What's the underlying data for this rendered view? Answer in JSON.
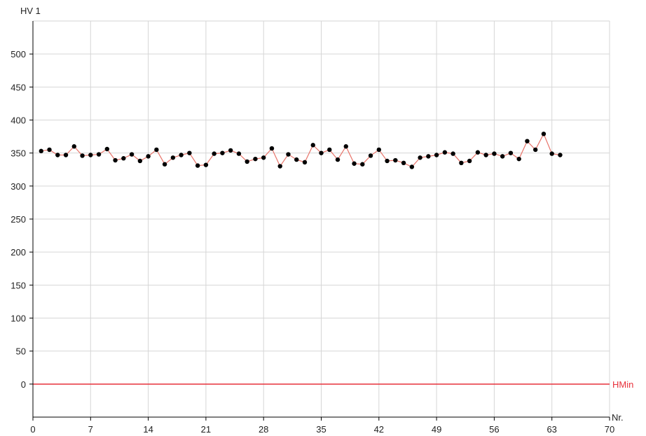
{
  "chart_data": {
    "type": "line",
    "xlabel": "Nr.",
    "ylabel": "HV 1",
    "xlim": [
      0,
      70
    ],
    "ylim": [
      -50,
      550
    ],
    "xticks": [
      0,
      7,
      14,
      21,
      28,
      35,
      42,
      49,
      56,
      63,
      70
    ],
    "yticks": [
      0,
      50,
      100,
      150,
      200,
      250,
      300,
      350,
      400,
      450,
      500
    ],
    "grid": true,
    "line_color": "#e8746a",
    "marker_color": "#000000",
    "series": [
      {
        "values": [
          {
            "x": 1,
            "y": 353
          },
          {
            "x": 2,
            "y": 355
          },
          {
            "x": 3,
            "y": 347
          },
          {
            "x": 4,
            "y": 347
          },
          {
            "x": 5,
            "y": 360
          },
          {
            "x": 6,
            "y": 346
          },
          {
            "x": 7,
            "y": 347
          },
          {
            "x": 8,
            "y": 348
          },
          {
            "x": 9,
            "y": 356
          },
          {
            "x": 10,
            "y": 339
          },
          {
            "x": 11,
            "y": 342
          },
          {
            "x": 12,
            "y": 348
          },
          {
            "x": 13,
            "y": 338
          },
          {
            "x": 14,
            "y": 345
          },
          {
            "x": 15,
            "y": 355
          },
          {
            "x": 16,
            "y": 333
          },
          {
            "x": 17,
            "y": 343
          },
          {
            "x": 18,
            "y": 347
          },
          {
            "x": 19,
            "y": 350
          },
          {
            "x": 20,
            "y": 331
          },
          {
            "x": 21,
            "y": 332
          },
          {
            "x": 22,
            "y": 349
          },
          {
            "x": 23,
            "y": 350
          },
          {
            "x": 24,
            "y": 354
          },
          {
            "x": 25,
            "y": 349
          },
          {
            "x": 26,
            "y": 337
          },
          {
            "x": 27,
            "y": 341
          },
          {
            "x": 28,
            "y": 343
          },
          {
            "x": 29,
            "y": 357
          },
          {
            "x": 30,
            "y": 330
          },
          {
            "x": 31,
            "y": 348
          },
          {
            "x": 32,
            "y": 340
          },
          {
            "x": 33,
            "y": 336
          },
          {
            "x": 34,
            "y": 362
          },
          {
            "x": 35,
            "y": 350
          },
          {
            "x": 36,
            "y": 355
          },
          {
            "x": 37,
            "y": 340
          },
          {
            "x": 38,
            "y": 360
          },
          {
            "x": 39,
            "y": 334
          },
          {
            "x": 40,
            "y": 333
          },
          {
            "x": 41,
            "y": 346
          },
          {
            "x": 42,
            "y": 355
          },
          {
            "x": 43,
            "y": 338
          },
          {
            "x": 44,
            "y": 339
          },
          {
            "x": 45,
            "y": 335
          },
          {
            "x": 46,
            "y": 329
          },
          {
            "x": 47,
            "y": 343
          },
          {
            "x": 48,
            "y": 345
          },
          {
            "x": 49,
            "y": 347
          },
          {
            "x": 50,
            "y": 351
          },
          {
            "x": 51,
            "y": 349
          },
          {
            "x": 52,
            "y": 335
          },
          {
            "x": 53,
            "y": 338
          },
          {
            "x": 54,
            "y": 351
          },
          {
            "x": 55,
            "y": 347
          },
          {
            "x": 56,
            "y": 349
          },
          {
            "x": 57,
            "y": 345
          },
          {
            "x": 58,
            "y": 350
          },
          {
            "x": 59,
            "y": 341
          },
          {
            "x": 60,
            "y": 368
          },
          {
            "x": 61,
            "y": 355
          },
          {
            "x": 62,
            "y": 379
          },
          {
            "x": 63,
            "y": 349
          },
          {
            "x": 64,
            "y": 347
          }
        ]
      }
    ],
    "reference_lines": [
      {
        "label": "HMin",
        "y": 0,
        "color": "#e8303a"
      }
    ]
  }
}
